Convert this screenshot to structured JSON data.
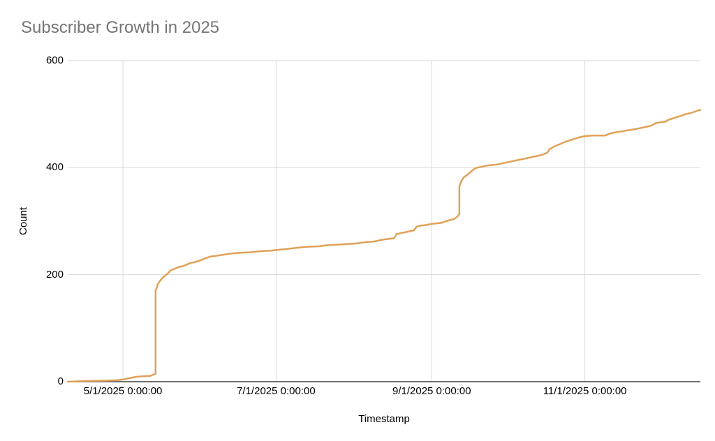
{
  "style": {
    "background": "#ffffff",
    "title_color": "#757575",
    "label_color": "#000000",
    "grid_color": "#dadada",
    "axis_color": "#6e6e6e",
    "line_color": "#E0A158"
  },
  "chart_data": {
    "type": "line",
    "title": "Subscriber Growth in 2025",
    "xlabel": "Timestamp",
    "ylabel": "Count",
    "ylim": [
      0,
      600
    ],
    "grid": true,
    "legend_position": "none",
    "x_range": [
      "2025-04-09",
      "2025-12-17"
    ],
    "y_ticks": [
      {
        "value": 0,
        "label": "0"
      },
      {
        "value": 200,
        "label": "200"
      },
      {
        "value": 400,
        "label": "400"
      },
      {
        "value": 600,
        "label": "600"
      }
    ],
    "x_ticks": [
      {
        "date": "2025-05-01",
        "label": "5/1/2025 0:00:00"
      },
      {
        "date": "2025-07-01",
        "label": "7/1/2025 0:00:00"
      },
      {
        "date": "2025-09-01",
        "label": "9/1/2025 0:00:00"
      },
      {
        "date": "2025-11-01",
        "label": "11/1/2025 0:00:00"
      }
    ],
    "series": [
      {
        "name": "Count",
        "color": "#E0A158",
        "points": [
          [
            "2025-04-09",
            0
          ],
          [
            "2025-04-15",
            1
          ],
          [
            "2025-04-24",
            2
          ],
          [
            "2025-04-29",
            3
          ],
          [
            "2025-05-01",
            4
          ],
          [
            "2025-05-03",
            6
          ],
          [
            "2025-05-06",
            9
          ],
          [
            "2025-05-09",
            10
          ],
          [
            "2025-05-12",
            11
          ],
          [
            "2025-05-13",
            13
          ],
          [
            "2025-05-14",
            15
          ],
          [
            "2025-05-14",
            170
          ],
          [
            "2025-05-15",
            183
          ],
          [
            "2025-05-16",
            190
          ],
          [
            "2025-05-17",
            195
          ],
          [
            "2025-05-18",
            199
          ],
          [
            "2025-05-19",
            203
          ],
          [
            "2025-05-20",
            208
          ],
          [
            "2025-05-22",
            212
          ],
          [
            "2025-05-23",
            214
          ],
          [
            "2025-05-25",
            216
          ],
          [
            "2025-05-27",
            220
          ],
          [
            "2025-05-28",
            222
          ],
          [
            "2025-05-30",
            224
          ],
          [
            "2025-06-01",
            227
          ],
          [
            "2025-06-03",
            231
          ],
          [
            "2025-06-05",
            234
          ],
          [
            "2025-06-08",
            236
          ],
          [
            "2025-06-11",
            238
          ],
          [
            "2025-06-14",
            240
          ],
          [
            "2025-06-17",
            241
          ],
          [
            "2025-06-21",
            242
          ],
          [
            "2025-06-25",
            244
          ],
          [
            "2025-06-29",
            245
          ],
          [
            "2025-07-01",
            246
          ],
          [
            "2025-07-05",
            248
          ],
          [
            "2025-07-09",
            250
          ],
          [
            "2025-07-13",
            252
          ],
          [
            "2025-07-18",
            253
          ],
          [
            "2025-07-21",
            255
          ],
          [
            "2025-07-25",
            256
          ],
          [
            "2025-07-28",
            257
          ],
          [
            "2025-08-01",
            258
          ],
          [
            "2025-08-03",
            259
          ],
          [
            "2025-08-06",
            261
          ],
          [
            "2025-08-09",
            262
          ],
          [
            "2025-08-11",
            264
          ],
          [
            "2025-08-13",
            266
          ],
          [
            "2025-08-15",
            267
          ],
          [
            "2025-08-17",
            268
          ],
          [
            "2025-08-18",
            276
          ],
          [
            "2025-08-19",
            277
          ],
          [
            "2025-08-21",
            279
          ],
          [
            "2025-08-23",
            281
          ],
          [
            "2025-08-25",
            283
          ],
          [
            "2025-08-26",
            290
          ],
          [
            "2025-08-28",
            292
          ],
          [
            "2025-08-30",
            293
          ],
          [
            "2025-09-01",
            295
          ],
          [
            "2025-09-03",
            296
          ],
          [
            "2025-09-05",
            297
          ],
          [
            "2025-09-06",
            299
          ],
          [
            "2025-09-08",
            302
          ],
          [
            "2025-09-10",
            304
          ],
          [
            "2025-09-11",
            308
          ],
          [
            "2025-09-12",
            313
          ],
          [
            "2025-09-12",
            365
          ],
          [
            "2025-09-13",
            377
          ],
          [
            "2025-09-14",
            383
          ],
          [
            "2025-09-15",
            386
          ],
          [
            "2025-09-16",
            390
          ],
          [
            "2025-09-17",
            394
          ],
          [
            "2025-09-18",
            398
          ],
          [
            "2025-09-19",
            400
          ],
          [
            "2025-09-21",
            402
          ],
          [
            "2025-09-23",
            404
          ],
          [
            "2025-09-25",
            405
          ],
          [
            "2025-09-27",
            406
          ],
          [
            "2025-09-29",
            408
          ],
          [
            "2025-10-01",
            410
          ],
          [
            "2025-10-03",
            412
          ],
          [
            "2025-10-05",
            414
          ],
          [
            "2025-10-07",
            416
          ],
          [
            "2025-10-09",
            418
          ],
          [
            "2025-10-11",
            420
          ],
          [
            "2025-10-13",
            422
          ],
          [
            "2025-10-15",
            424
          ],
          [
            "2025-10-16",
            426
          ],
          [
            "2025-10-17",
            428
          ],
          [
            "2025-10-18",
            435
          ],
          [
            "2025-10-20",
            440
          ],
          [
            "2025-10-22",
            444
          ],
          [
            "2025-10-24",
            448
          ],
          [
            "2025-10-26",
            451
          ],
          [
            "2025-10-28",
            454
          ],
          [
            "2025-10-30",
            457
          ],
          [
            "2025-11-01",
            459
          ],
          [
            "2025-11-04",
            460
          ],
          [
            "2025-11-09",
            460
          ],
          [
            "2025-11-11",
            464
          ],
          [
            "2025-11-13",
            466
          ],
          [
            "2025-11-16",
            468
          ],
          [
            "2025-11-18",
            470
          ],
          [
            "2025-11-21",
            472
          ],
          [
            "2025-11-23",
            474
          ],
          [
            "2025-11-25",
            476
          ],
          [
            "2025-11-27",
            478
          ],
          [
            "2025-11-28",
            480
          ],
          [
            "2025-11-29",
            483
          ],
          [
            "2025-12-01",
            485
          ],
          [
            "2025-12-03",
            486
          ],
          [
            "2025-12-04",
            489
          ],
          [
            "2025-12-06",
            492
          ],
          [
            "2025-12-08",
            495
          ],
          [
            "2025-12-10",
            498
          ],
          [
            "2025-12-11",
            500
          ],
          [
            "2025-12-13",
            502
          ],
          [
            "2025-12-15",
            505
          ],
          [
            "2025-12-16",
            507
          ],
          [
            "2025-12-17",
            508
          ]
        ]
      }
    ]
  }
}
